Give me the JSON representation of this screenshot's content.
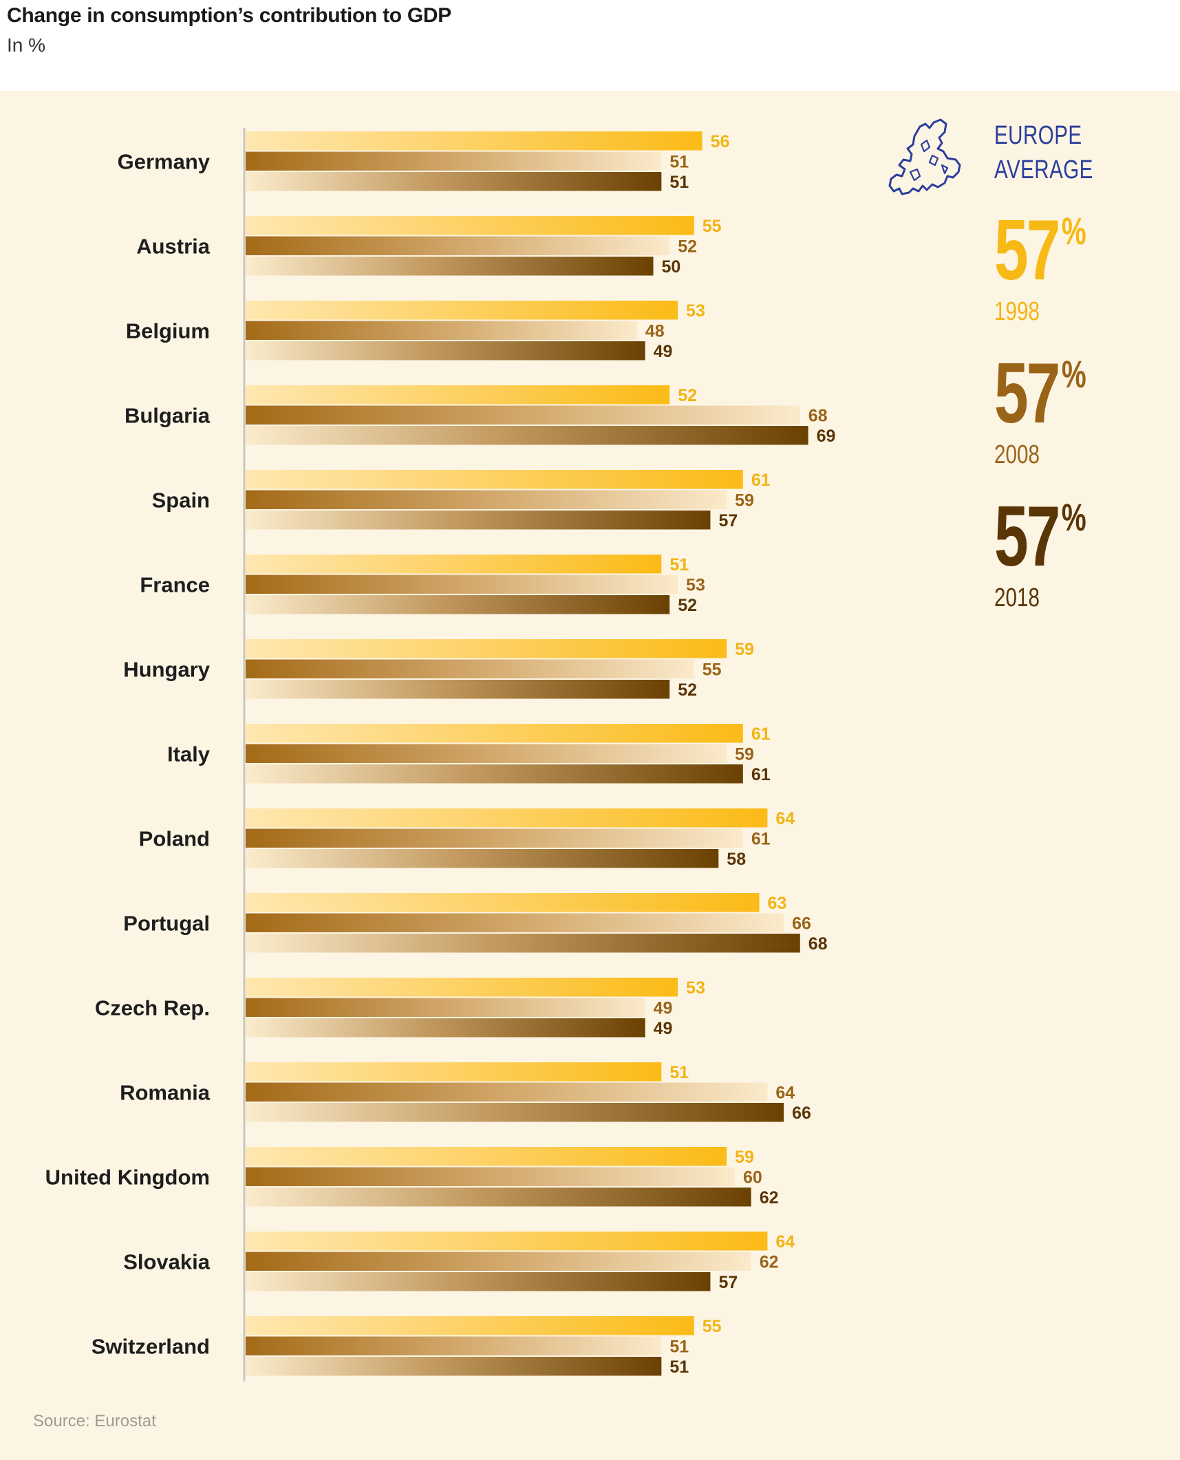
{
  "title": "Change in consumption’s contribution to GDP",
  "subtitle": "In %",
  "source": "Source: Eurostat",
  "colors": {
    "y1998_light": "#ffe4a8",
    "y1998_dark": "#fbbb17",
    "y2008_dark": "#a36a17",
    "y2008_light": "#fbe9c6",
    "y2018_light": "#f6e0b6",
    "y2018_dark": "#6a4102",
    "label_1998": "#f2b415",
    "label_2008": "#9a6418",
    "label_2018": "#5a3606",
    "background": "#fdf5e4",
    "europe_icon": "#2b3e9c"
  },
  "legend": {
    "title_line1": "EUROPE",
    "title_line2": "AVERAGE",
    "icon": "europe-map-icon",
    "items": [
      {
        "value": "57",
        "unit": "%",
        "year": "1998"
      },
      {
        "value": "57",
        "unit": "%",
        "year": "2008"
      },
      {
        "value": "57",
        "unit": "%",
        "year": "2018"
      }
    ]
  },
  "chart_data": {
    "type": "bar",
    "orientation": "horizontal",
    "categories": [
      "Germany",
      "Austria",
      "Belgium",
      "Bulgaria",
      "Spain",
      "France",
      "Hungary",
      "Italy",
      "Poland",
      "Portugal",
      "Czech Rep.",
      "Romania",
      "United Kingdom",
      "Slovakia",
      "Switzerland"
    ],
    "series": [
      {
        "name": "1998",
        "values": [
          56,
          55,
          53,
          52,
          61,
          51,
          59,
          61,
          64,
          63,
          53,
          51,
          59,
          64,
          55
        ]
      },
      {
        "name": "2008",
        "values": [
          51,
          52,
          48,
          68,
          59,
          53,
          55,
          59,
          61,
          66,
          49,
          64,
          60,
          62,
          51
        ]
      },
      {
        "name": "2018",
        "values": [
          51,
          50,
          49,
          69,
          57,
          52,
          52,
          61,
          58,
          68,
          49,
          66,
          62,
          57,
          51
        ]
      }
    ],
    "xlim": [
      0,
      70
    ],
    "grid": false,
    "legend_placement": "top-right"
  }
}
